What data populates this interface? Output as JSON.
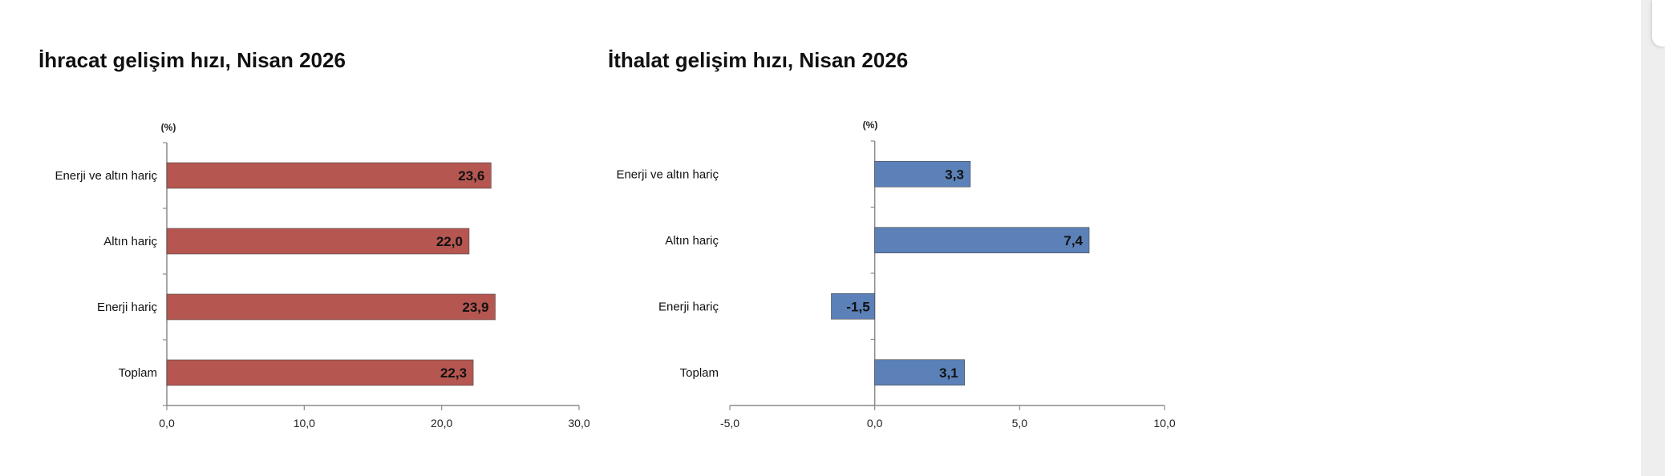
{
  "charts": [
    {
      "title": "İhracat gelişim hızı, Nisan 2026",
      "unit_label": "(%)",
      "bar_color": "#b55650"
    },
    {
      "title": "İthalat gelişim hızı, Nisan 2026",
      "unit_label": "(%)",
      "bar_color": "#5b81b8"
    }
  ],
  "chart_data": [
    {
      "type": "bar",
      "orientation": "horizontal",
      "title": "İhracat gelişim hızı, Nisan 2026",
      "categories": [
        "Enerji ve altın hariç",
        "Altın hariç",
        "Enerji hariç",
        "Toplam"
      ],
      "values": [
        23.6,
        22.0,
        23.9,
        22.3
      ],
      "value_labels": [
        "23,6",
        "22,0",
        "23,9",
        "22,3"
      ],
      "xlim": [
        0,
        30
      ],
      "xticks": [
        0,
        10,
        20,
        30
      ],
      "xtick_labels": [
        "0,0",
        "10,0",
        "20,0",
        "30,0"
      ],
      "unit": "(%)",
      "grid": false,
      "legend": "none"
    },
    {
      "type": "bar",
      "orientation": "horizontal",
      "title": "İthalat gelişim hızı, Nisan 2026",
      "categories": [
        "Enerji ve altın hariç",
        "Altın hariç",
        "Enerji hariç",
        "Toplam"
      ],
      "values": [
        3.3,
        7.4,
        -1.5,
        3.1
      ],
      "value_labels": [
        "3,3",
        "7,4",
        "-1,5",
        "3,1"
      ],
      "xlim": [
        -5,
        10
      ],
      "xticks": [
        -5,
        0,
        5,
        10
      ],
      "xtick_labels": [
        "-5,0",
        "0,0",
        "5,0",
        "10,0"
      ],
      "unit": "(%)",
      "grid": false,
      "legend": "none"
    }
  ]
}
